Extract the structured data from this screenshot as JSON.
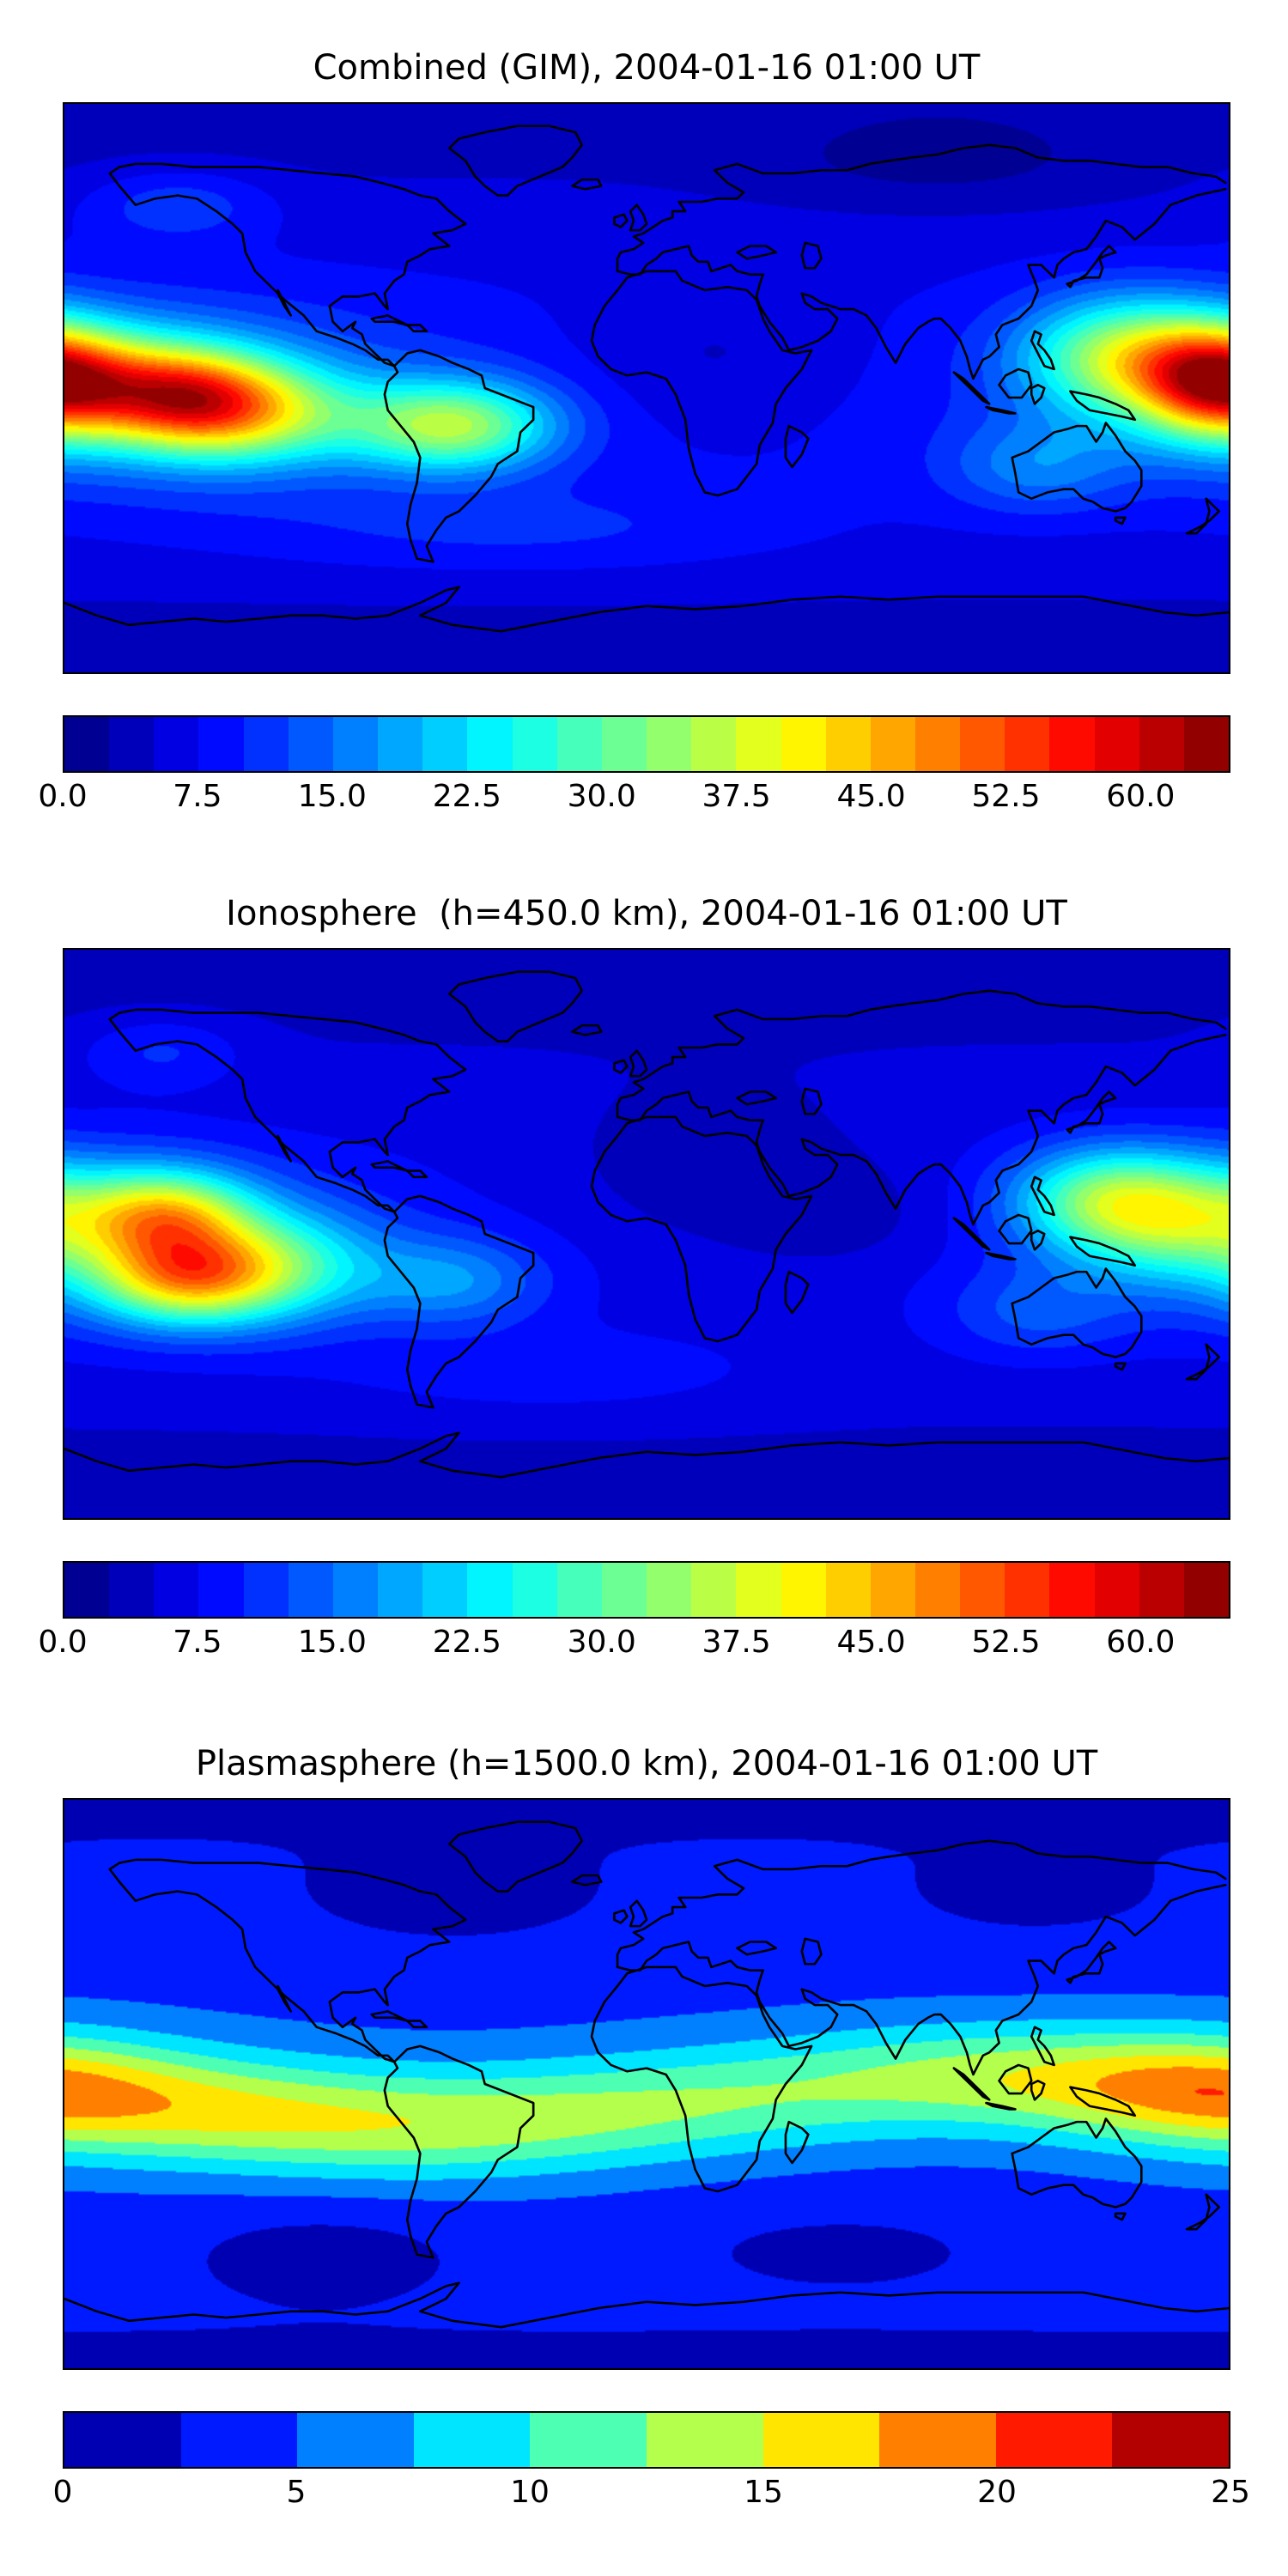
{
  "figure": {
    "background": "#ffffff",
    "panel_count": 3,
    "text_color": "#000000"
  },
  "chart_data": [
    {
      "type": "heatmap",
      "subtype": "filled-contour-world-map",
      "title": "Combined (GIM), 2004-01-16 01:00 UT",
      "projection": "equirectangular",
      "x_range": [
        -180,
        180
      ],
      "y_range": [
        -90,
        90
      ],
      "basemap": "world-coastlines",
      "colormap": "jet",
      "vmin": 0,
      "vmax": 65,
      "level_step": 2.5,
      "colorbar_ticks": [
        {
          "value": 0,
          "label": "0.0"
        },
        {
          "value": 7.5,
          "label": "7.5"
        },
        {
          "value": 15,
          "label": "15.0"
        },
        {
          "value": 22.5,
          "label": "22.5"
        },
        {
          "value": 30,
          "label": "30.0"
        },
        {
          "value": 37.5,
          "label": "37.5"
        },
        {
          "value": 45,
          "label": "45.0"
        },
        {
          "value": 52.5,
          "label": "52.5"
        },
        {
          "value": 60,
          "label": "60.0"
        }
      ],
      "field_model": {
        "base_offset": 3,
        "base_cos_amp": 5,
        "blobs": [
          {
            "lon": -143,
            "lat": -3,
            "sx": 20,
            "sy": 11,
            "amp": 30
          },
          {
            "lon": -120,
            "lat": -8,
            "sx": 22,
            "sy": 11,
            "amp": 18
          },
          {
            "lon": -165,
            "lat": 3,
            "sx": 20,
            "sy": 12,
            "amp": 12
          },
          {
            "lon": -60,
            "lat": -12,
            "sx": 22,
            "sy": 10,
            "amp": 26
          },
          {
            "lon": 175,
            "lat": 2,
            "sx": 16,
            "sy": 12,
            "amp": 34
          },
          {
            "lon": 148,
            "lat": 10,
            "sx": 22,
            "sy": 13,
            "amp": 25
          },
          {
            "lon": -150,
            "lat": -3,
            "sx": 55,
            "sy": 20,
            "amp": 10
          },
          {
            "lon": 120,
            "lat": -25,
            "sx": 20,
            "sy": 10,
            "amp": 8
          },
          {
            "lon": -40,
            "lat": -45,
            "sx": 60,
            "sy": 10,
            "amp": 4
          },
          {
            "lon": -145,
            "lat": 58,
            "sx": 20,
            "sy": 8,
            "amp": 6
          },
          {
            "lon": 20,
            "lat": 10,
            "sx": 30,
            "sy": 15,
            "amp": -3
          },
          {
            "lon": 90,
            "lat": 70,
            "sx": 40,
            "sy": 10,
            "amp": -3
          }
        ]
      }
    },
    {
      "type": "heatmap",
      "subtype": "filled-contour-world-map",
      "title": "Ionosphere  (h=450.0 km), 2004-01-16 01:00 UT",
      "projection": "equirectangular",
      "x_range": [
        -180,
        180
      ],
      "y_range": [
        -90,
        90
      ],
      "basemap": "world-coastlines",
      "colormap": "jet",
      "vmin": 0,
      "vmax": 65,
      "level_step": 2.5,
      "colorbar_ticks": [
        {
          "value": 0,
          "label": "0.0"
        },
        {
          "value": 7.5,
          "label": "7.5"
        },
        {
          "value": 15,
          "label": "15.0"
        },
        {
          "value": 22.5,
          "label": "22.5"
        },
        {
          "value": 30,
          "label": "30.0"
        },
        {
          "value": 37.5,
          "label": "37.5"
        },
        {
          "value": 45,
          "label": "45.0"
        },
        {
          "value": 52.5,
          "label": "52.5"
        },
        {
          "value": 60,
          "label": "60.0"
        }
      ],
      "field_model": {
        "base_offset": 3,
        "base_cos_amp": 4,
        "blobs": [
          {
            "lon": -148,
            "lat": 6,
            "sx": 18,
            "sy": 10,
            "amp": 26
          },
          {
            "lon": -143,
            "lat": -14,
            "sx": 20,
            "sy": 10,
            "amp": 28
          },
          {
            "lon": -115,
            "lat": -10,
            "sx": 22,
            "sy": 12,
            "amp": 16
          },
          {
            "lon": -60,
            "lat": -15,
            "sx": 20,
            "sy": 10,
            "amp": 10
          },
          {
            "lon": 165,
            "lat": 5,
            "sx": 25,
            "sy": 13,
            "amp": 22
          },
          {
            "lon": 140,
            "lat": 12,
            "sx": 20,
            "sy": 11,
            "amp": 16
          },
          {
            "lon": -155,
            "lat": -3,
            "sx": 50,
            "sy": 20,
            "amp": 8
          },
          {
            "lon": 120,
            "lat": -25,
            "sx": 20,
            "sy": 10,
            "amp": 6
          },
          {
            "lon": -150,
            "lat": 58,
            "sx": 18,
            "sy": 8,
            "amp": 5
          },
          {
            "lon": -30,
            "lat": -45,
            "sx": 50,
            "sy": 10,
            "amp": 3
          },
          {
            "lon": 20,
            "lat": 20,
            "sx": 35,
            "sy": 18,
            "amp": -3
          },
          {
            "lon": 60,
            "lat": 5,
            "sx": 25,
            "sy": 12,
            "amp": -2.5
          }
        ]
      }
    },
    {
      "type": "heatmap",
      "subtype": "filled-contour-world-map",
      "title": "Plasmasphere (h=1500.0 km), 2004-01-16 01:00 UT",
      "projection": "equirectangular",
      "x_range": [
        -180,
        180
      ],
      "y_range": [
        -90,
        90
      ],
      "basemap": "world-coastlines",
      "colormap": "jet",
      "vmin": 0,
      "vmax": 25,
      "level_step": 2.5,
      "colorbar_ticks": [
        {
          "value": 0,
          "label": "0"
        },
        {
          "value": 5,
          "label": "5"
        },
        {
          "value": 10,
          "label": "10"
        },
        {
          "value": 15,
          "label": "15"
        },
        {
          "value": 20,
          "label": "20"
        },
        {
          "value": 25,
          "label": "25"
        }
      ],
      "field_model": {
        "base_offset": 2,
        "base_cos_amp": 2.5,
        "blobs": [
          {
            "lon": -170,
            "lat": -5,
            "sx": 40,
            "sy": 13,
            "amp": 6
          },
          {
            "lon": -120,
            "lat": -10,
            "sx": 35,
            "sy": 12,
            "amp": 6.5
          },
          {
            "lon": -70,
            "lat": -14,
            "sx": 35,
            "sy": 12,
            "amp": 6
          },
          {
            "lon": -20,
            "lat": -10,
            "sx": 35,
            "sy": 12,
            "amp": 5.5
          },
          {
            "lon": 30,
            "lat": -4,
            "sx": 35,
            "sy": 12,
            "amp": 5
          },
          {
            "lon": 85,
            "lat": 2,
            "sx": 35,
            "sy": 12,
            "amp": 5.5
          },
          {
            "lon": 135,
            "lat": 2,
            "sx": 35,
            "sy": 12,
            "amp": 6
          },
          {
            "lon": 175,
            "lat": -2,
            "sx": 30,
            "sy": 12,
            "amp": 6
          },
          {
            "lon": -100,
            "lat": -52,
            "sx": 30,
            "sy": 10,
            "amp": -2
          },
          {
            "lon": 60,
            "lat": -50,
            "sx": 40,
            "sy": 10,
            "amp": -1.5
          },
          {
            "lon": -60,
            "lat": 55,
            "sx": 40,
            "sy": 12,
            "amp": -1.5
          },
          {
            "lon": 120,
            "lat": 55,
            "sx": 40,
            "sy": 12,
            "amp": -1.2
          }
        ]
      }
    }
  ]
}
